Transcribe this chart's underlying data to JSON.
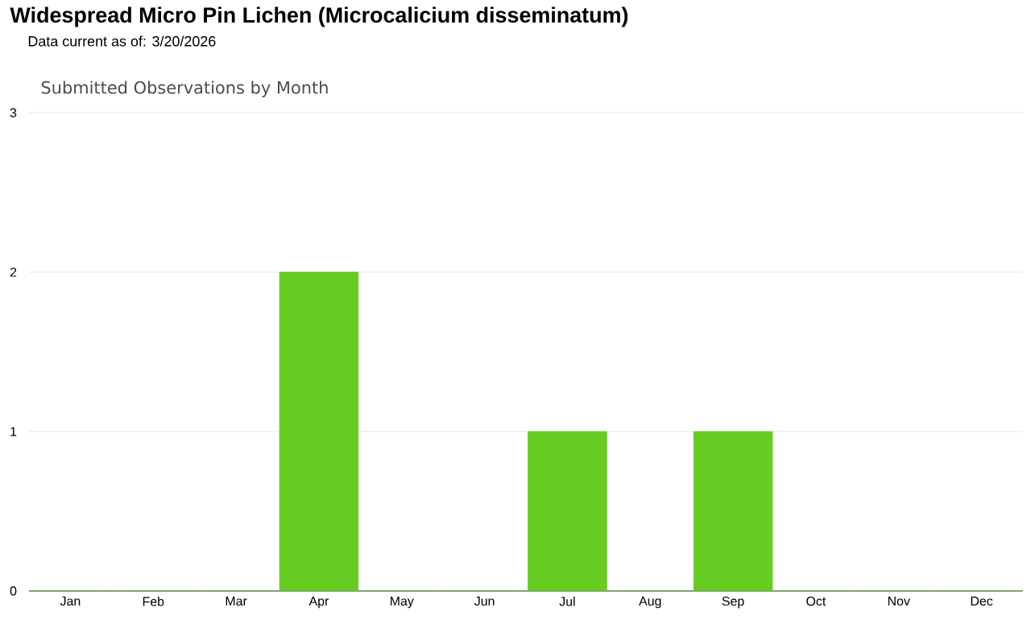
{
  "chart_data": {
    "type": "bar",
    "title": "Widespread Micro Pin Lichen   (Microcalicium disseminatum)",
    "subtitle": "Data current as of: 3/20/2026",
    "annotations": [
      "Submitted Observations by Month"
    ],
    "categories": [
      "Jan",
      "Feb",
      "Mar",
      "Apr",
      "May",
      "Jun",
      "Jul",
      "Aug",
      "Sep",
      "Oct",
      "Nov",
      "Dec"
    ],
    "values": [
      0,
      0,
      0,
      2,
      0,
      0,
      1,
      0,
      1,
      0,
      0,
      0
    ],
    "color": "#66cc22",
    "ylim": [
      0,
      3
    ],
    "yticks": [
      0,
      1,
      2,
      3
    ],
    "grid": "y"
  }
}
